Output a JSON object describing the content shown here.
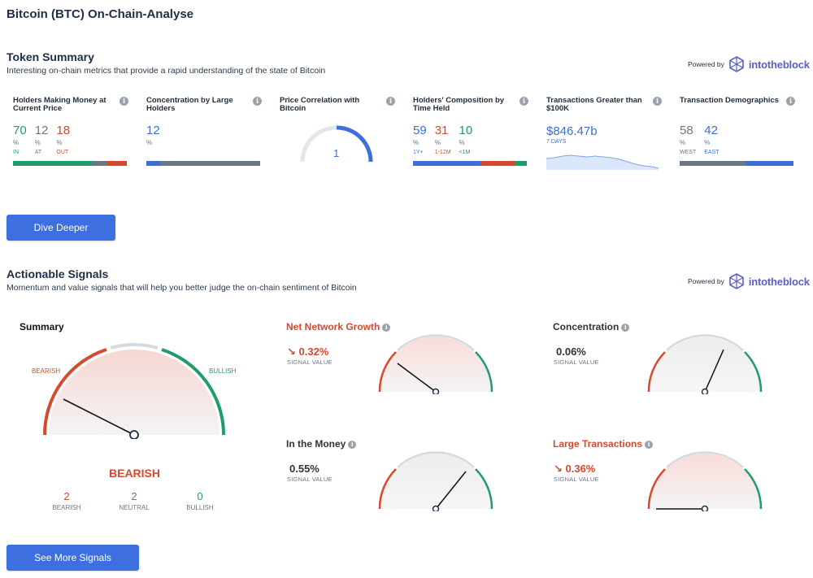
{
  "page_title": "Bitcoin (BTC) On-Chain-Analyse",
  "token_summary": {
    "title": "Token Summary",
    "description": "Interesting on-chain metrics that provide a rapid understanding of the state of Bitcoin",
    "powered_by": "Powered by",
    "brand": "intotheblock",
    "cards": {
      "holders_money": {
        "title": "Holders Making Money at Current Price",
        "in": "70",
        "at": "12",
        "out": "18",
        "pct": "%",
        "in_label": "IN",
        "at_label": "AT",
        "out_label": "OUT"
      },
      "concentration": {
        "title": "Concentration by Large Holders",
        "value": "12",
        "pct": "%"
      },
      "price_correlation": {
        "title": "Price Correlation with Bitcoin",
        "value": "1"
      },
      "composition": {
        "title": "Holders' Composition by Time Held",
        "v1": "59",
        "v2": "31",
        "v3": "10",
        "pct": "%",
        "l1": "1Y+",
        "l2": "1-12M",
        "l3": "<1M"
      },
      "transactions": {
        "title": "Transactions Greater than $100K",
        "value": "$846.47b",
        "sub": "7 DAYS"
      },
      "demographics": {
        "title": "Transaction Demographics",
        "v1": "58",
        "v2": "42",
        "pct": "%",
        "l1": "WEST",
        "l2": "EAST"
      }
    },
    "button": "Dive Deeper"
  },
  "signals": {
    "title": "Actionable Signals",
    "description": "Momentum and value signals that will help you better judge the on-chain sentiment of Bitcoin",
    "powered_by": "Powered by",
    "brand": "intotheblock",
    "summary": {
      "title": "Summary",
      "bearish_label": "BEARISH",
      "bullish_label": "BULLISH",
      "verdict": "BEARISH",
      "bearish_count": "2",
      "bearish_count_label": "BEARISH",
      "neutral_count": "2",
      "neutral_count_label": "NEUTRAL",
      "bullish_count": "0",
      "bullish_count_label": "BULLISH"
    },
    "net_network_growth": {
      "title": "Net Network Growth",
      "value": "↘ 0.32%",
      "label": "SIGNAL VALUE"
    },
    "concentration": {
      "title": "Concentration",
      "value": "0.06%",
      "label": "SIGNAL VALUE"
    },
    "in_the_money": {
      "title": "In the Money",
      "value": "0.55%",
      "label": "SIGNAL VALUE"
    },
    "large_transactions": {
      "title": "Large Transactions",
      "value": "↘ 0.36%",
      "label": "SIGNAL VALUE"
    },
    "button": "See More Signals"
  },
  "colors": {
    "green": "#1e9d6a",
    "red": "#d5492f",
    "blue": "#3b6fd6",
    "gray": "#6b7785",
    "button": "#3d6fe0",
    "brand": "#5b5fc7"
  },
  "icons": [
    "info-icon",
    "intotheblock-logo-icon",
    "arrow-down-right-icon"
  ]
}
